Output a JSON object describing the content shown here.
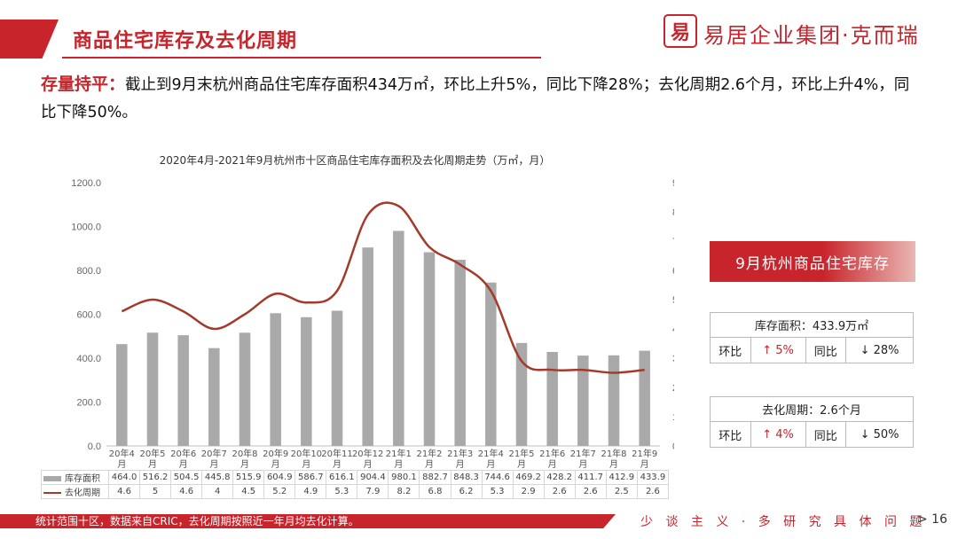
{
  "header": {
    "title": "商品住宅库存及去化周期",
    "logo_mark": "易",
    "company": "易居企业集团·克而瑞"
  },
  "summary": {
    "highlight": "存量持平：",
    "text": "截止到9月末杭州商品住宅库存面积434万㎡，环比上升5%，同比下降28%；去化周期2.6个月，环比上升4%，同比下降50%。"
  },
  "chart_data": {
    "type": "bar",
    "title": "2020年4月-2021年9月杭州市十区商品住宅库存面积及去化周期走势（万㎡，月）",
    "categories": [
      "20年4月",
      "20年5月",
      "20年6月",
      "20年7月",
      "20年8月",
      "20年9月",
      "20年10月",
      "20年11月",
      "20年12月",
      "21年1月",
      "21年2月",
      "21年3月",
      "21年4月",
      "21年5月",
      "21年6月",
      "21年7月",
      "21年8月",
      "21年9月"
    ],
    "series": [
      {
        "name": "库存面积",
        "type": "bar",
        "axis": "left",
        "color": "#a9a9a9",
        "values": [
          464.0,
          516.2,
          504.5,
          445.8,
          515.9,
          604.9,
          586.7,
          616.1,
          904.4,
          980.1,
          882.7,
          848.3,
          744.6,
          469.2,
          428.2,
          411.7,
          412.9,
          433.9
        ],
        "labels": [
          "464.0",
          "516.2",
          "504.5",
          "445.8",
          "515.9",
          "604.9",
          "586.7",
          "616.1",
          "904.4",
          "980.1",
          "882.7",
          "848.3",
          "744.6",
          "469.2",
          "428.2",
          "411.7",
          "412.9",
          "433.9"
        ]
      },
      {
        "name": "去化周期",
        "type": "line",
        "axis": "right",
        "color": "#a33a2a",
        "values": [
          4.6,
          5,
          4.6,
          4,
          4.5,
          5.2,
          4.9,
          5.3,
          7.9,
          8.2,
          6.8,
          6.2,
          5.3,
          2.9,
          2.6,
          2.6,
          2.5,
          2.6
        ],
        "labels": [
          "4.6",
          "5",
          "4.6",
          "4",
          "4.5",
          "5.2",
          "4.9",
          "5.3",
          "7.9",
          "8.2",
          "6.8",
          "6.2",
          "5.3",
          "2.9",
          "2.6",
          "2.6",
          "2.5",
          "2.6"
        ]
      }
    ],
    "y_left": {
      "min": 0,
      "max": 1200,
      "step": 200,
      "ticks": [
        "0.0",
        "200.0",
        "400.0",
        "600.0",
        "800.0",
        "1000.0",
        "1200.0"
      ]
    },
    "y_right": {
      "min": 0,
      "max": 9,
      "step": 1,
      "ticks": [
        "0",
        "1",
        "2",
        "3",
        "4",
        "5",
        "6",
        "7",
        "8",
        "9"
      ]
    },
    "legend": "table-below",
    "grid": false
  },
  "side_panel": {
    "title": "9月杭州商品住宅库存",
    "stock": {
      "head": "库存面积：433.9万㎡",
      "mom_label": "环比",
      "mom_value": "↑ 5%",
      "yoy_label": "同比",
      "yoy_value": "↓ 28%"
    },
    "cycle": {
      "head": "去化周期：2.6个月",
      "mom_label": "环比",
      "mom_value": "↑ 4%",
      "yoy_label": "同比",
      "yoy_value": "↓ 50%"
    }
  },
  "footer": {
    "note": "统计范围十区，数据来自CRIC，去化周期按照近一年月均去化计算。",
    "motto": "少 谈 主 义 · 多 研 究 具 体 问 题",
    "page": "> 16"
  },
  "colors": {
    "brand": "#c8242b",
    "bar": "#a9a9a9",
    "line": "#a33a2a"
  }
}
